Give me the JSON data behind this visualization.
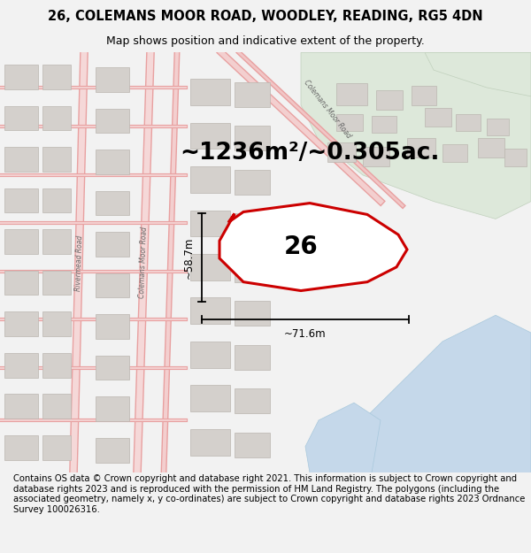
{
  "title": "26, COLEMANS MOOR ROAD, WOODLEY, READING, RG5 4DN",
  "subtitle": "Map shows position and indicative extent of the property.",
  "area_text": "~1236m²/~0.305ac.",
  "label_number": "26",
  "dim_width": "~71.6m",
  "dim_height": "~58.7m",
  "footer_text": "Contains OS data © Crown copyright and database right 2021. This information is subject to Crown copyright and database rights 2023 and is reproduced with the permission of HM Land Registry. The polygons (including the associated geometry, namely x, y co-ordinates) are subject to Crown copyright and database rights 2023 Ordnance Survey 100026316.",
  "bg_color": "#f2f2f2",
  "map_bg": "#eeebe6",
  "road_color": "#e8a0a0",
  "building_fill": "#d4d0cc",
  "building_stroke": "#bbb6b0",
  "green_area": "#dde8da",
  "blue_area": "#c5d8ea",
  "highlight_stroke": "#cc0000",
  "title_fontsize": 10.5,
  "subtitle_fontsize": 9,
  "area_fontsize": 19,
  "label_fontsize": 20,
  "dim_fontsize": 8.5,
  "footer_fontsize": 7.2
}
